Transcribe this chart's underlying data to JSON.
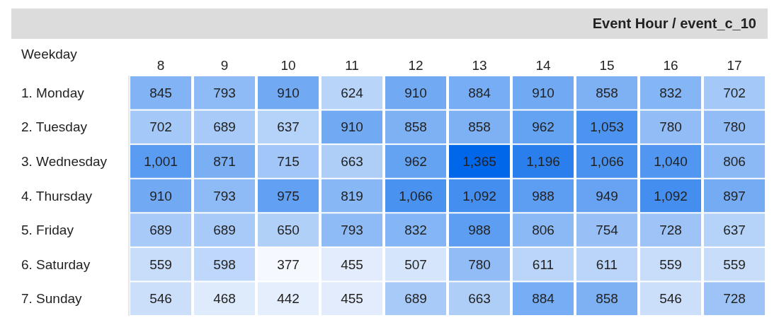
{
  "chart_data": {
    "type": "heatmap",
    "title": "Event Hour / event_c_10",
    "ylabel": "Weekday",
    "categories": [
      "8",
      "9",
      "10",
      "11",
      "12",
      "13",
      "14",
      "15",
      "16",
      "17"
    ],
    "y_categories": [
      "1. Monday",
      "2. Tuesday",
      "3. Wednesday",
      "4. Thursday",
      "5. Friday",
      "6. Saturday",
      "7. Sunday"
    ],
    "cells": [
      [
        845,
        793,
        910,
        624,
        910,
        884,
        910,
        858,
        832,
        702
      ],
      [
        702,
        689,
        637,
        910,
        858,
        858,
        962,
        1053,
        780,
        780
      ],
      [
        1001,
        871,
        715,
        663,
        962,
        1365,
        1196,
        1066,
        1040,
        806
      ],
      [
        910,
        793,
        975,
        819,
        1066,
        1092,
        988,
        949,
        1092,
        897
      ],
      [
        689,
        689,
        650,
        793,
        832,
        988,
        806,
        754,
        728,
        637
      ],
      [
        559,
        598,
        377,
        455,
        507,
        780,
        611,
        611,
        559,
        559
      ],
      [
        546,
        468,
        442,
        455,
        689,
        663,
        884,
        858,
        546,
        728
      ]
    ],
    "cell_labels": [
      [
        "845",
        "793",
        "910",
        "624",
        "910",
        "884",
        "910",
        "858",
        "832",
        "702"
      ],
      [
        "702",
        "689",
        "637",
        "910",
        "858",
        "858",
        "962",
        "1,053",
        "780",
        "780"
      ],
      [
        "1,001",
        "871",
        "715",
        "663",
        "962",
        "1,365",
        "1,196",
        "1,066",
        "1,040",
        "806"
      ],
      [
        "910",
        "793",
        "975",
        "819",
        "1,066",
        "1,092",
        "988",
        "949",
        "1,092",
        "897"
      ],
      [
        "689",
        "689",
        "650",
        "793",
        "832",
        "988",
        "806",
        "754",
        "728",
        "637"
      ],
      [
        "559",
        "598",
        "377",
        "455",
        "507",
        "780",
        "611",
        "611",
        "559",
        "559"
      ],
      [
        "546",
        "468",
        "442",
        "455",
        "689",
        "663",
        "884",
        "858",
        "546",
        "728"
      ]
    ]
  }
}
